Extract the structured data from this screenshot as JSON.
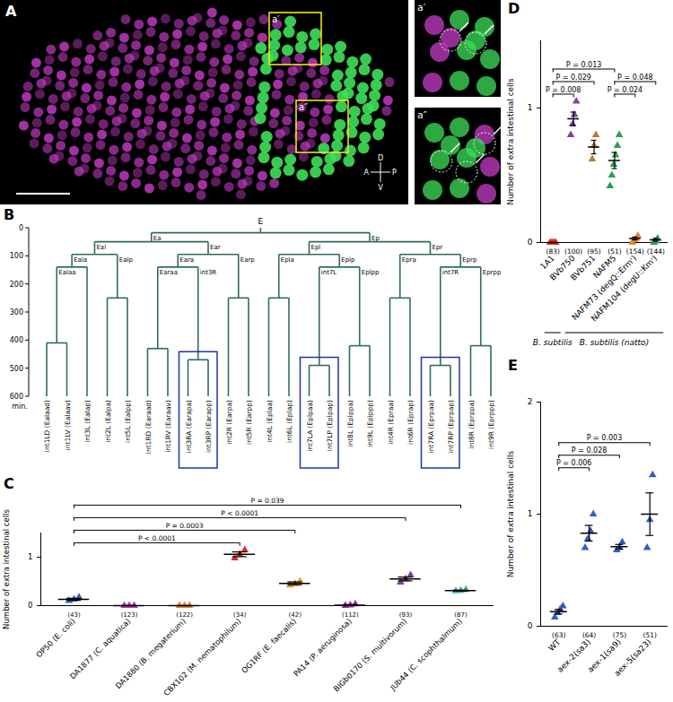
{
  "panels": {
    "A": {
      "label": "A",
      "insets": [
        "a′",
        "a″"
      ],
      "compass": {
        "up": "D",
        "down": "V",
        "left": "A",
        "right": "P"
      }
    },
    "B": {
      "label": "B",
      "axis_label": "min.",
      "ylim": [
        0,
        600
      ],
      "yticks": [
        0,
        100,
        200,
        300,
        400,
        500,
        600
      ],
      "tree": {
        "label": "E",
        "time": 18,
        "children": [
          {
            "label": "Ea",
            "time": 50,
            "children": [
              {
                "label": "Eal",
                "time": 95,
                "children": [
                  {
                    "label": "Eala",
                    "time": 140,
                    "children": [
                      {
                        "label": "Ealaa",
                        "time": 410,
                        "children": [
                          {
                            "label": "int1LD (Ealaad)"
                          },
                          {
                            "label": "int1LV (Ealaav)"
                          }
                        ]
                      },
                      {
                        "label": "int3L (Ealap)"
                      }
                    ]
                  },
                  {
                    "label": "Ealp",
                    "time": 250,
                    "children": [
                      {
                        "label": "int2L (Ealpa)"
                      },
                      {
                        "label": "int5L (Ealpp)"
                      }
                    ]
                  }
                ]
              },
              {
                "label": "Ear",
                "time": 95,
                "children": [
                  {
                    "label": "Eara",
                    "time": 140,
                    "children": [
                      {
                        "label": "Earaa",
                        "time": 430,
                        "children": [
                          {
                            "label": "int1RD (Earaad)"
                          },
                          {
                            "label": "int1RV (Earaav)"
                          }
                        ]
                      },
                      {
                        "label": "int3R",
                        "time": 470,
                        "highlight": true,
                        "children": [
                          {
                            "label": "int3RA (Earapa)"
                          },
                          {
                            "label": "int3RP (Earapp)"
                          }
                        ]
                      }
                    ]
                  },
                  {
                    "label": "Earp",
                    "time": 250,
                    "children": [
                      {
                        "label": "int2R (Earpa)"
                      },
                      {
                        "label": "int5R (Earpp)"
                      }
                    ]
                  }
                ]
              }
            ]
          },
          {
            "label": "Ep",
            "time": 50,
            "children": [
              {
                "label": "Epl",
                "time": 95,
                "children": [
                  {
                    "label": "Epla",
                    "time": 250,
                    "children": [
                      {
                        "label": "int4L (Eplaa)"
                      },
                      {
                        "label": "int6L (Eplap)"
                      }
                    ]
                  },
                  {
                    "label": "Eplp",
                    "time": 140,
                    "children": [
                      {
                        "label": "int7L",
                        "time": 490,
                        "highlight": true,
                        "children": [
                          {
                            "label": "int7LA (Eplpaa)"
                          },
                          {
                            "label": "int7LP (Eplpap)"
                          }
                        ]
                      },
                      {
                        "label": "Eplpp",
                        "time": 420,
                        "children": [
                          {
                            "label": "int8L (Eplppa)"
                          },
                          {
                            "label": "int9L (Eplppp)"
                          }
                        ]
                      }
                    ]
                  }
                ]
              },
              {
                "label": "Epr",
                "time": 95,
                "children": [
                  {
                    "label": "Epra",
                    "time": 250,
                    "children": [
                      {
                        "label": "int4R (Epraa)"
                      },
                      {
                        "label": "int6R (Eprap)"
                      }
                    ]
                  },
                  {
                    "label": "Eprp",
                    "time": 140,
                    "children": [
                      {
                        "label": "int7R",
                        "time": 490,
                        "highlight": true,
                        "children": [
                          {
                            "label": "int7RA (Eprpaa)"
                          },
                          {
                            "label": "int7RP (Eprpap)"
                          }
                        ]
                      },
                      {
                        "label": "Eprpp",
                        "time": 420,
                        "children": [
                          {
                            "label": "int8R (Eprppa)"
                          },
                          {
                            "label": "int9R (Eprppp)"
                          }
                        ]
                      }
                    ]
                  }
                ]
              }
            ]
          }
        ]
      }
    }
  },
  "chart_data": [
    {
      "panel": "C",
      "type": "dot",
      "marker": "triangle",
      "y_label": "Number of extra intestinal cells",
      "categories": [
        "OP50 (E. coli)",
        "DA1877 (C. aquatica)",
        "DA1880 (B. megaterium)",
        "CBX102 (M. nematophilum)",
        "OG1RF (E. faecalis)",
        "PA14 (P. aeruginosa)",
        "BIGb0170 (S. multivorum)",
        "JUb44 (C. scophthalmum)"
      ],
      "colors": [
        "#2f5fc4",
        "#b03cb0",
        "#e08a2a",
        "#e0302a",
        "#e39a2a",
        "#a020a0",
        "#7a3fa0",
        "#3fb0b0"
      ],
      "points": [
        [
          0.1,
          0.13,
          0.17
        ],
        [
          0,
          0,
          0
        ],
        [
          0,
          0,
          0
        ],
        [
          0.98,
          1.06,
          1.15
        ],
        [
          0.42,
          0.45,
          0.5
        ],
        [
          0,
          0.01,
          0.03
        ],
        [
          0.48,
          0.55,
          0.63
        ],
        [
          0.3,
          0.31,
          0.33
        ]
      ],
      "means": [
        0.13,
        0,
        0,
        1.06,
        0.46,
        0.01,
        0.55,
        0.31
      ],
      "sem": [
        0.02,
        0,
        0,
        0.05,
        0.03,
        0.01,
        0.04,
        0.01
      ],
      "n_labels": [
        "(43)",
        "(123)",
        "(122)",
        "(34)",
        "(42)",
        "(112)",
        "(93)",
        "(87)"
      ],
      "ylim": [
        0,
        1.5
      ],
      "yticks": [
        0,
        1
      ],
      "comparisons": [
        {
          "from": "OP50 (E. coli)",
          "to": "CBX102 (M. nematophilum)",
          "label": "P < 0.0001"
        },
        {
          "from": "OP50 (E. coli)",
          "to": "OG1RF (E. faecalis)",
          "label": "P = 0.0003"
        },
        {
          "from": "OP50 (E. coli)",
          "to": "BIGb0170 (S. multivorum)",
          "label": "P < 0.0001"
        },
        {
          "from": "OP50 (E. coli)",
          "to": "JUb44 (C. scophthalmum)",
          "label": "P = 0.039"
        }
      ]
    },
    {
      "panel": "D",
      "type": "dot",
      "marker": "triangle",
      "y_label": "Number of extra intestinal cells",
      "categories": [
        "1A1",
        "BVb750",
        "BVb751",
        "NAFM5",
        "NAFM73 (degQ::Ermʳ)",
        "NAFM104 (degU::Kmʳ)"
      ],
      "colors": [
        "#e0302a",
        "#8a3fa0",
        "#c07a2a",
        "#2aa050",
        "#e08a2a",
        "#2aa050"
      ],
      "points": [
        [
          0,
          0,
          0,
          0
        ],
        [
          0.8,
          0.88,
          0.95,
          1.05
        ],
        [
          0.62,
          0.72,
          0.8
        ],
        [
          0.42,
          0.5,
          0.58,
          0.65,
          0.72,
          0.8
        ],
        [
          0,
          0.02,
          0.03,
          0.05
        ],
        [
          0,
          0.01,
          0.03
        ]
      ],
      "means": [
        0,
        0.92,
        0.71,
        0.61,
        0.03,
        0.02
      ],
      "sem": [
        0,
        0.05,
        0.05,
        0.06,
        0.01,
        0.01
      ],
      "n_labels": [
        "(83)",
        "(100)",
        "(95)",
        "(51)",
        "(154)",
        "(144)"
      ],
      "ylim": [
        0,
        1.5
      ],
      "yticks": [
        0,
        1
      ],
      "groups": [
        {
          "label": "B. subtilis",
          "categories": [
            "1A1"
          ]
        },
        {
          "label": "B. subtilis (natto)",
          "categories": [
            "BVb750",
            "BVb751",
            "NAFM5",
            "NAFM73 (degQ::Ermʳ)",
            "NAFM104 (degU::Kmʳ)"
          ]
        }
      ],
      "comparisons": [
        {
          "from": "1A1",
          "to": "BVb750",
          "label": "P = 0.008"
        },
        {
          "from": "NAFM5",
          "to": "NAFM73 (degQ::Ermʳ)",
          "label": "P = 0.024"
        },
        {
          "from": "1A1",
          "to": "BVb751",
          "label": "P = 0.029"
        },
        {
          "from": "NAFM5",
          "to": "NAFM104 (degU::Kmʳ)",
          "label": "P = 0.048"
        },
        {
          "from": "1A1",
          "to": "NAFM5",
          "label": "P = 0.013"
        }
      ]
    },
    {
      "panel": "E",
      "type": "dot",
      "marker": "triangle",
      "y_label": "Number of extra intestinal cells",
      "categories": [
        "WT",
        "aex-2(sa3)",
        "aex-1(sa9)",
        "aex-5(sa23)"
      ],
      "colors": [
        "#2f5fc4",
        "#2f5fc4",
        "#2f5fc4",
        "#2f5fc4"
      ],
      "points": [
        [
          0.08,
          0.12,
          0.15,
          0.18
        ],
        [
          0.7,
          0.78,
          0.85,
          1.0
        ],
        [
          0.68,
          0.7,
          0.75
        ],
        [
          0.7,
          0.95,
          1.35
        ]
      ],
      "means": [
        0.13,
        0.83,
        0.71,
        1.0
      ],
      "sem": [
        0.02,
        0.07,
        0.02,
        0.19
      ],
      "n_labels": [
        "(63)",
        "(64)",
        "(75)",
        "(51)"
      ],
      "ylim": [
        0,
        2
      ],
      "yticks": [
        0,
        1,
        2
      ],
      "comparisons": [
        {
          "from": "WT",
          "to": "aex-2(sa3)",
          "label": "P = 0.006"
        },
        {
          "from": "WT",
          "to": "aex-1(sa9)",
          "label": "P = 0.028"
        },
        {
          "from": "WT",
          "to": "aex-5(sa23)",
          "label": "P = 0.003"
        }
      ]
    }
  ]
}
